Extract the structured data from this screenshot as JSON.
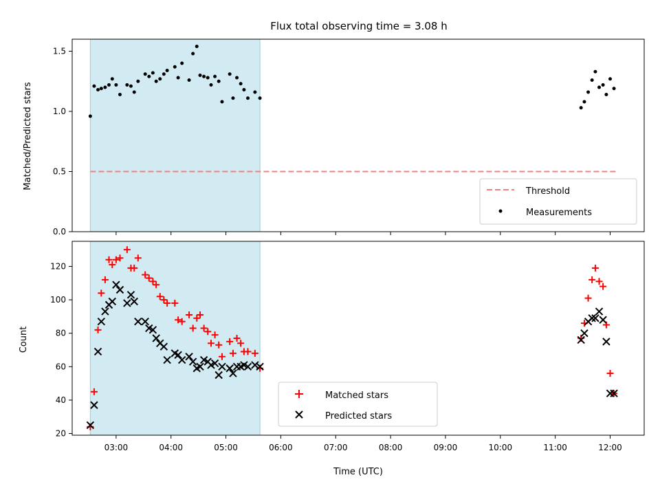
{
  "chart_data": [
    {
      "type": "scatter",
      "title": "Flux total observing time = 3.08 h",
      "ylabel": "Matched/Predicted stars",
      "xlabel": "",
      "xlim": [
        2.2,
        12.62
      ],
      "ylim": [
        0,
        1.6
      ],
      "yticks": [
        0.0,
        0.5,
        1.0,
        1.5
      ],
      "ytick_labels": [
        "0.0",
        "0.5",
        "1.0",
        "1.5"
      ],
      "shaded_span": [
        2.53,
        5.62
      ],
      "shade_color": "#add8e6",
      "threshold": {
        "name": "Threshold",
        "y": 0.5,
        "x_range": [
          2.53,
          12.15
        ],
        "color": "#f08080"
      },
      "series": [
        {
          "name": "Measurements",
          "color": "#000000",
          "x": [
            2.53,
            2.6,
            2.67,
            2.73,
            2.8,
            2.87,
            2.93,
            3.0,
            3.07,
            3.2,
            3.27,
            3.33,
            3.4,
            3.53,
            3.6,
            3.67,
            3.73,
            3.8,
            3.87,
            3.93,
            4.07,
            4.13,
            4.2,
            4.33,
            4.4,
            4.47,
            4.53,
            4.6,
            4.67,
            4.73,
            4.8,
            4.87,
            4.93,
            5.07,
            5.13,
            5.2,
            5.27,
            5.33,
            5.4,
            5.53,
            5.62,
            11.47,
            11.53,
            11.6,
            11.67,
            11.73,
            11.8,
            11.87,
            11.93,
            12.0,
            12.07
          ],
          "y": [
            0.96,
            1.21,
            1.18,
            1.19,
            1.2,
            1.22,
            1.27,
            1.22,
            1.14,
            1.22,
            1.21,
            1.16,
            1.25,
            1.31,
            1.29,
            1.32,
            1.25,
            1.27,
            1.31,
            1.34,
            1.37,
            1.28,
            1.4,
            1.26,
            1.48,
            1.54,
            1.3,
            1.29,
            1.28,
            1.22,
            1.29,
            1.25,
            1.08,
            1.31,
            1.11,
            1.28,
            1.23,
            1.18,
            1.11,
            1.16,
            1.11,
            1.03,
            1.08,
            1.16,
            1.26,
            1.33,
            1.2,
            1.22,
            1.14,
            1.27,
            1.19
          ]
        }
      ],
      "legend": {
        "position": "lower-right",
        "entries": [
          "Threshold",
          "Measurements"
        ]
      }
    },
    {
      "type": "scatter",
      "title": "",
      "ylabel": "Count",
      "xlabel": "Time (UTC)",
      "xlim": [
        2.2,
        12.62
      ],
      "ylim": [
        19,
        135
      ],
      "yticks": [
        20,
        40,
        60,
        80,
        100,
        120
      ],
      "xticks": [
        3,
        4,
        5,
        6,
        7,
        8,
        9,
        10,
        11,
        12
      ],
      "xtick_labels": [
        "03:00",
        "04:00",
        "05:00",
        "06:00",
        "07:00",
        "08:00",
        "09:00",
        "10:00",
        "11:00",
        "12:00"
      ],
      "shaded_span": [
        2.53,
        5.62
      ],
      "shade_color": "#add8e6",
      "series": [
        {
          "name": "Matched stars",
          "marker": "plus",
          "color": "#ff0000",
          "x": [
            2.53,
            2.6,
            2.67,
            2.73,
            2.8,
            2.87,
            2.93,
            3.0,
            3.07,
            3.2,
            3.27,
            3.33,
            3.4,
            3.53,
            3.6,
            3.67,
            3.73,
            3.8,
            3.87,
            3.93,
            4.07,
            4.13,
            4.2,
            4.33,
            4.4,
            4.47,
            4.53,
            4.6,
            4.67,
            4.73,
            4.8,
            4.87,
            4.93,
            5.07,
            5.13,
            5.2,
            5.27,
            5.33,
            5.4,
            5.53,
            5.62,
            11.47,
            11.53,
            11.6,
            11.67,
            11.73,
            11.8,
            11.87,
            11.93,
            12.0,
            12.07
          ],
          "y": [
            24,
            45,
            82,
            104,
            112,
            124,
            121,
            124,
            125,
            130,
            119,
            119,
            125,
            115,
            113,
            111,
            109,
            102,
            100,
            98,
            98,
            88,
            87,
            91,
            83,
            89,
            91,
            83,
            81,
            74,
            79,
            73,
            66,
            75,
            68,
            77,
            74,
            69,
            69,
            68,
            59,
            77,
            86,
            101,
            112,
            119,
            111,
            108,
            85,
            56,
            44
          ],
          "note": ""
        },
        {
          "name": "Predicted stars",
          "marker": "x",
          "color": "#000000",
          "x": [
            2.53,
            2.6,
            2.67,
            2.73,
            2.8,
            2.87,
            2.93,
            3.0,
            3.07,
            3.2,
            3.27,
            3.33,
            3.4,
            3.53,
            3.6,
            3.67,
            3.73,
            3.8,
            3.87,
            3.93,
            4.07,
            4.13,
            4.2,
            4.33,
            4.4,
            4.47,
            4.53,
            4.6,
            4.67,
            4.73,
            4.8,
            4.87,
            4.93,
            5.07,
            5.13,
            5.2,
            5.27,
            5.33,
            5.4,
            5.53,
            5.62,
            11.47,
            11.53,
            11.6,
            11.67,
            11.73,
            11.8,
            11.87,
            11.93,
            12.0,
            12.07
          ],
          "y": [
            25,
            37,
            69,
            87,
            93,
            97,
            99,
            109,
            106,
            98,
            103,
            99,
            87,
            87,
            83,
            82,
            77,
            74,
            72,
            64,
            68,
            67,
            64,
            66,
            63,
            59,
            60,
            64,
            63,
            61,
            62,
            55,
            60,
            59,
            56,
            60,
            60,
            61,
            60,
            61,
            60,
            76,
            80,
            87,
            89,
            89,
            93,
            88,
            75,
            44,
            44
          ]
        }
      ],
      "legend": {
        "position": "lower-center",
        "entries": [
          "Matched stars",
          "Predicted stars"
        ]
      }
    }
  ]
}
